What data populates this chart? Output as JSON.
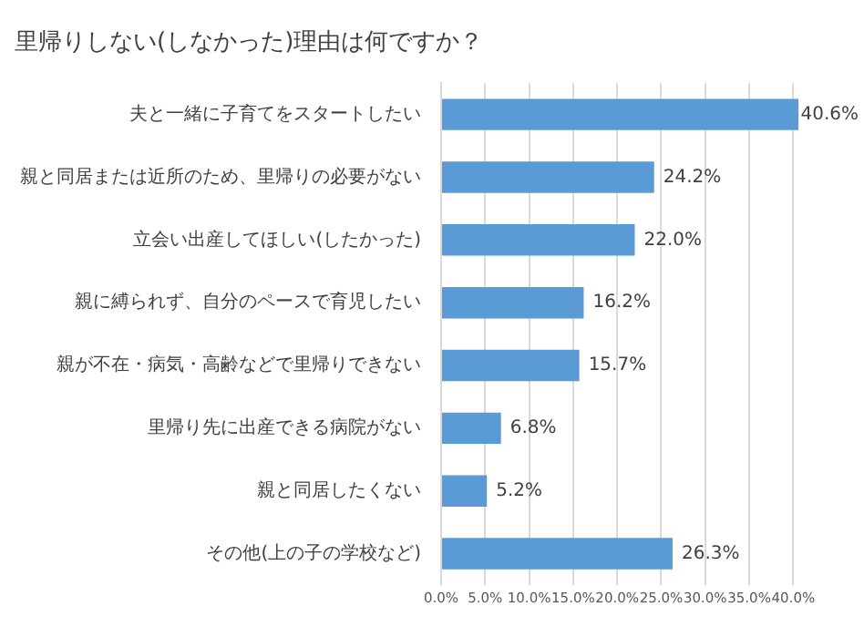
{
  "chart_data": {
    "type": "bar",
    "orientation": "horizontal",
    "title": "里帰りしない(しなかった)理由は何ですか？",
    "categories": [
      "夫と一緒に子育てをスタートしたい",
      "親と同居または近所のため、里帰りの必要がない",
      "立会い出産してほしい(したかった)",
      "親に縛られず、自分のペースで育児したい",
      "親が不在・病気・高齢などで里帰りできない",
      "里帰り先に出産できる病院がない",
      "親と同居したくない",
      "その他(上の子の学校など)"
    ],
    "values": [
      40.6,
      24.2,
      22.0,
      16.2,
      15.7,
      6.8,
      5.2,
      26.3
    ],
    "value_labels": [
      "40.6%",
      "24.2%",
      "22.0%",
      "16.2%",
      "15.7%",
      "6.8%",
      "5.2%",
      "26.3%"
    ],
    "color": "#5b9bd5",
    "xlim": [
      0,
      41
    ],
    "xticks": [
      {
        "value": 0,
        "label": "0.0%"
      },
      {
        "value": 5,
        "label": "5.0%"
      },
      {
        "value": 10,
        "label": "10.0%"
      },
      {
        "value": 15,
        "label": "15.0%"
      },
      {
        "value": 20,
        "label": "20.0%"
      },
      {
        "value": 25,
        "label": "25.0%"
      },
      {
        "value": 30,
        "label": "30.0%"
      },
      {
        "value": 35,
        "label": "35.0%"
      },
      {
        "value": 40,
        "label": "40.0%"
      }
    ],
    "grid": "x"
  }
}
